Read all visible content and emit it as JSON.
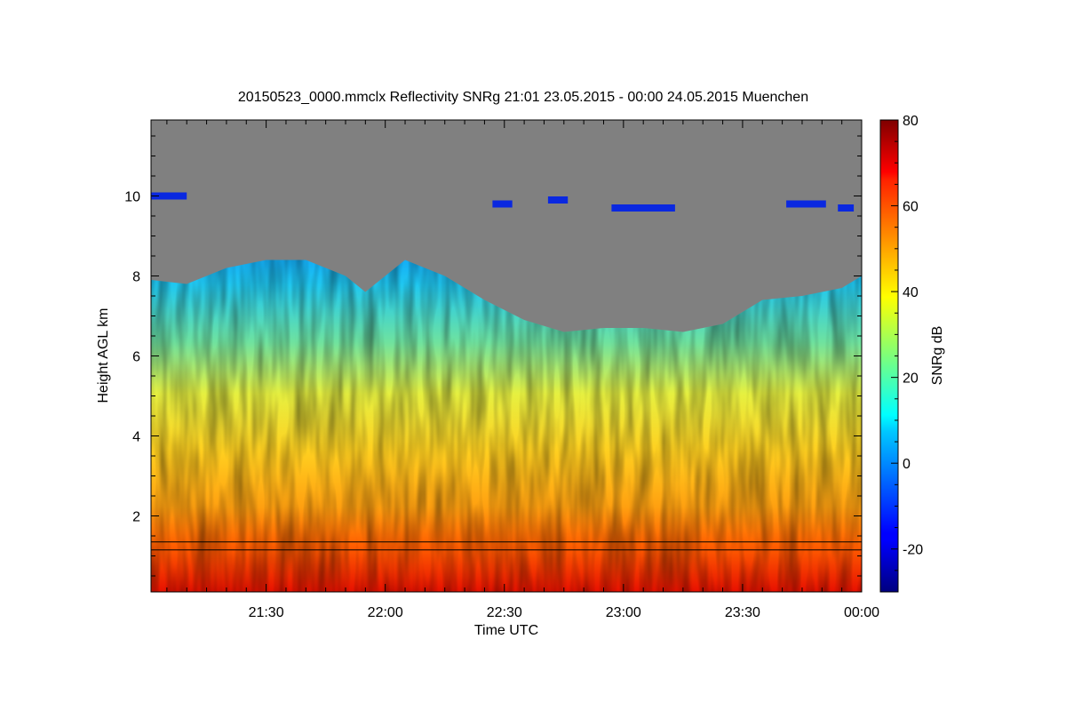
{
  "chart_data": {
    "type": "heatmap",
    "title": "20150523_0000.mmclx Reflectivity SNRg   21:01 23.05.2015 - 00:00 24.05.2015 Muenchen",
    "xlabel": "Time UTC",
    "ylabel": "Height AGL km",
    "xlim": [
      "21:01",
      "00:00"
    ],
    "ylim": [
      0.1,
      11.9
    ],
    "x_ticks": [
      "21:30",
      "22:00",
      "22:30",
      "23:00",
      "23:30",
      "00:00"
    ],
    "y_ticks": [
      2,
      4,
      6,
      8,
      10
    ],
    "colorbar": {
      "label": "SNRg dB",
      "range": [
        -30,
        80
      ],
      "ticks": [
        -20,
        0,
        20,
        40,
        60,
        80
      ],
      "colormap": "jet"
    },
    "no_signal_color": "#808080",
    "cloud_top_km": [
      [
        "21:01",
        7.9
      ],
      [
        "21:10",
        7.8
      ],
      [
        "21:20",
        8.2
      ],
      [
        "21:30",
        8.4
      ],
      [
        "21:40",
        8.4
      ],
      [
        "21:50",
        8.0
      ],
      [
        "21:55",
        7.6
      ],
      [
        "22:05",
        8.4
      ],
      [
        "22:15",
        8.0
      ],
      [
        "22:25",
        7.4
      ],
      [
        "22:35",
        6.9
      ],
      [
        "22:45",
        6.6
      ],
      [
        "22:55",
        6.7
      ],
      [
        "23:05",
        6.7
      ],
      [
        "23:15",
        6.6
      ],
      [
        "23:25",
        6.8
      ],
      [
        "23:35",
        7.4
      ],
      [
        "23:45",
        7.5
      ],
      [
        "23:55",
        7.7
      ],
      [
        "00:00",
        8.0
      ]
    ],
    "upper_cloud_patches": [
      {
        "from": "21:01",
        "to": "21:10",
        "height_km": 10.0
      },
      {
        "from": "22:27",
        "to": "22:32",
        "height_km": 9.8
      },
      {
        "from": "22:41",
        "to": "22:46",
        "height_km": 9.9
      },
      {
        "from": "22:57",
        "to": "23:13",
        "height_km": 9.7
      },
      {
        "from": "23:41",
        "to": "23:51",
        "height_km": 9.8
      },
      {
        "from": "23:54",
        "to": "23:58",
        "height_km": 9.7
      }
    ],
    "boundary_layer_lines_km": [
      1.35,
      1.15
    ]
  }
}
